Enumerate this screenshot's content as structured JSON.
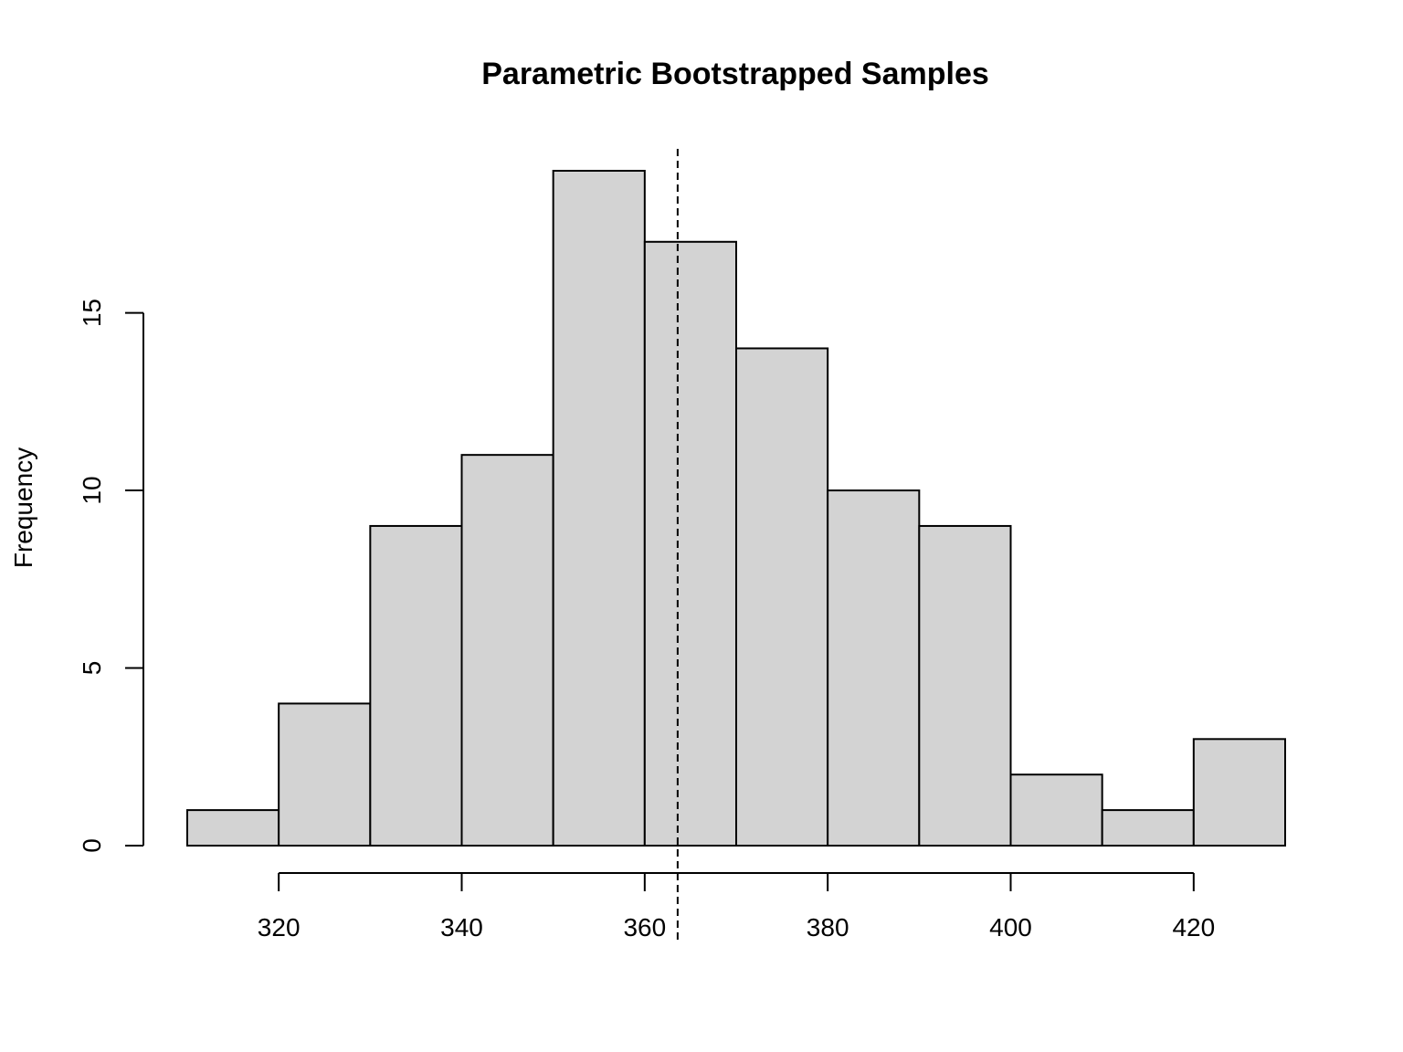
{
  "chart_data": {
    "type": "bar",
    "subtype": "histogram",
    "title": "Parametric Bootstrapped Samples",
    "xlabel": "",
    "ylabel": "Frequency",
    "bins": [
      {
        "from": 310,
        "to": 320,
        "count": 1
      },
      {
        "from": 320,
        "to": 330,
        "count": 4
      },
      {
        "from": 330,
        "to": 340,
        "count": 9
      },
      {
        "from": 340,
        "to": 350,
        "count": 11
      },
      {
        "from": 350,
        "to": 360,
        "count": 19
      },
      {
        "from": 360,
        "to": 370,
        "count": 17
      },
      {
        "from": 370,
        "to": 380,
        "count": 14
      },
      {
        "from": 380,
        "to": 390,
        "count": 10
      },
      {
        "from": 390,
        "to": 400,
        "count": 9
      },
      {
        "from": 400,
        "to": 410,
        "count": 2
      },
      {
        "from": 410,
        "to": 420,
        "count": 1
      },
      {
        "from": 420,
        "to": 430,
        "count": 3
      }
    ],
    "xlim": [
      310,
      430
    ],
    "ylim": [
      0,
      19
    ],
    "x_ticks": [
      320,
      340,
      360,
      380,
      400,
      420
    ],
    "y_ticks": [
      0,
      5,
      10,
      15
    ],
    "x_tick_labels": [
      "320",
      "340",
      "360",
      "380",
      "400",
      "420"
    ],
    "y_tick_labels": [
      "0",
      "5",
      "10",
      "15"
    ],
    "reference_line": {
      "x": 363.6,
      "style": "dashed"
    },
    "grid": false,
    "legend": "none",
    "colors": {
      "bar_fill": "#d3d3d3",
      "bar_stroke": "#000000",
      "text": "#000000"
    }
  }
}
